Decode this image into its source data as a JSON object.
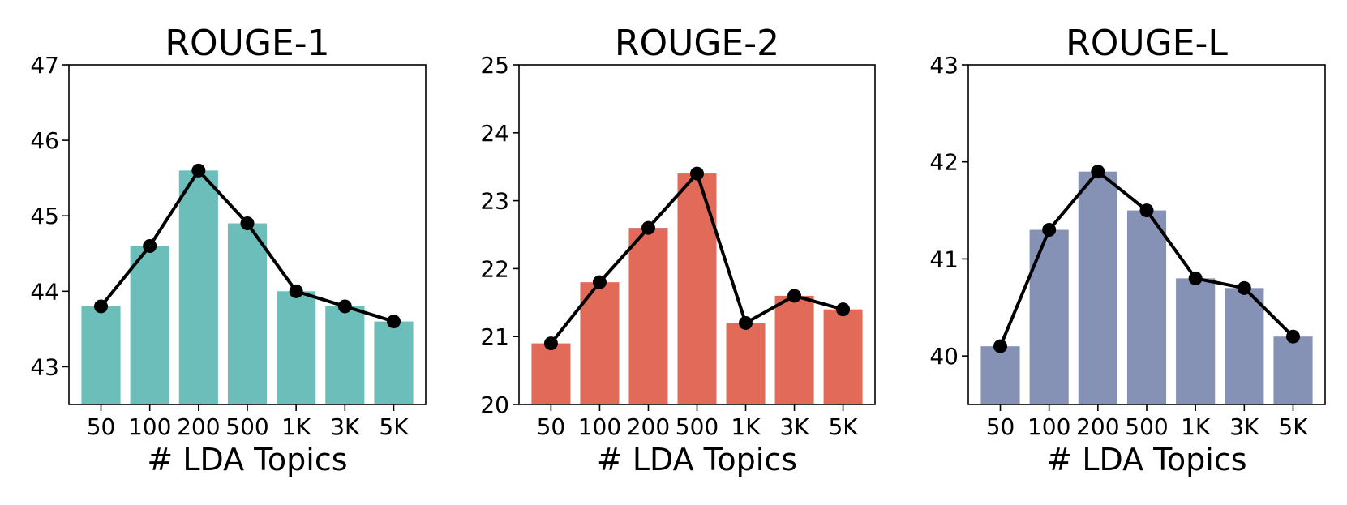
{
  "chart_data": [
    {
      "type": "bar",
      "title": "ROUGE-1",
      "xlabel": "# LDA Topics",
      "ylabel": "",
      "categories": [
        "50",
        "100",
        "200",
        "500",
        "1K",
        "3K",
        "5K"
      ],
      "values": [
        43.8,
        44.6,
        45.6,
        44.9,
        44.0,
        43.8,
        43.6
      ],
      "ylim": [
        42.5,
        47
      ],
      "yticks": [
        "43",
        "44",
        "45",
        "46",
        "47"
      ],
      "color": "#6bbeb9",
      "overlay": "line with circle markers",
      "grid": false
    },
    {
      "type": "bar",
      "title": "ROUGE-2",
      "xlabel": "# LDA Topics",
      "ylabel": "",
      "categories": [
        "50",
        "100",
        "200",
        "500",
        "1K",
        "3K",
        "5K"
      ],
      "values": [
        20.9,
        21.8,
        22.6,
        23.4,
        21.2,
        21.6,
        21.4
      ],
      "ylim": [
        20,
        25
      ],
      "yticks": [
        "20",
        "21",
        "22",
        "23",
        "24",
        "25"
      ],
      "color": "#e16b58",
      "overlay": "line with circle markers",
      "grid": false
    },
    {
      "type": "bar",
      "title": "ROUGE-L",
      "xlabel": "# LDA Topics",
      "ylabel": "",
      "categories": [
        "50",
        "100",
        "200",
        "500",
        "1K",
        "3K",
        "5K"
      ],
      "values": [
        40.1,
        41.3,
        41.9,
        41.5,
        40.8,
        40.7,
        40.2
      ],
      "ylim": [
        39.5,
        43
      ],
      "yticks": [
        "40",
        "41",
        "42",
        "43"
      ],
      "color": "#8592b5",
      "overlay": "line with circle markers",
      "grid": false
    }
  ]
}
